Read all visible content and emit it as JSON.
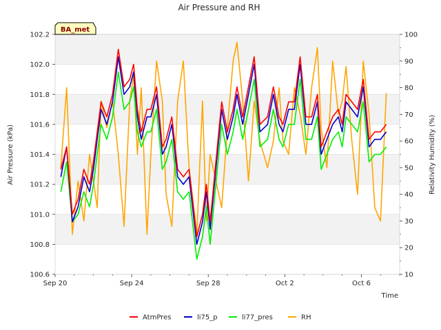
{
  "chart_data": {
    "type": "line",
    "title": "Air Pressure and RH",
    "badge": "BA_met",
    "xlabel": "Time",
    "ylabel_left": "Air Pressure (kPa)",
    "ylabel_right": "Relativity Humidity (%)",
    "x_range_days": [
      0,
      18
    ],
    "ylim_left": [
      100.6,
      102.2
    ],
    "ylim_right": [
      10,
      100
    ],
    "x_ticks": [
      {
        "day": 0,
        "label": "Sep 20"
      },
      {
        "day": 4,
        "label": "Sep 24"
      },
      {
        "day": 8,
        "label": "Sep 28"
      },
      {
        "day": 12,
        "label": "Oct 2"
      },
      {
        "day": 16,
        "label": "Oct 6"
      }
    ],
    "y_ticks_left": [
      "100.6",
      "100.8",
      "101.0",
      "101.2",
      "101.4",
      "101.6",
      "101.8",
      "102.0",
      "102.2"
    ],
    "y_ticks_right": [
      "10",
      "20",
      "30",
      "40",
      "50",
      "60",
      "70",
      "80",
      "90",
      "100"
    ],
    "grid": true,
    "legend_position": "bottom",
    "x_days": [
      0.3,
      0.6,
      0.9,
      1.2,
      1.5,
      1.8,
      2.0,
      2.2,
      2.4,
      2.7,
      3.0,
      3.3,
      3.6,
      3.9,
      4.1,
      4.3,
      4.5,
      4.8,
      5.0,
      5.3,
      5.6,
      5.8,
      6.1,
      6.4,
      6.7,
      7.0,
      7.4,
      7.7,
      7.9,
      8.1,
      8.4,
      8.7,
      9.0,
      9.3,
      9.5,
      9.8,
      10.1,
      10.4,
      10.7,
      11.1,
      11.4,
      11.7,
      11.9,
      12.2,
      12.5,
      12.8,
      13.1,
      13.4,
      13.7,
      13.9,
      14.2,
      14.5,
      14.8,
      15.0,
      15.2,
      15.5,
      15.8,
      16.1,
      16.4,
      16.7,
      17.0,
      17.3
    ],
    "series": [
      {
        "name": "AtmPres",
        "color": "#ff0000",
        "axis": "left",
        "values": [
          101.3,
          101.45,
          101.0,
          101.1,
          101.3,
          101.2,
          101.35,
          101.55,
          101.75,
          101.65,
          101.8,
          102.1,
          101.85,
          101.9,
          102.0,
          101.7,
          101.55,
          101.7,
          101.7,
          101.85,
          101.45,
          101.5,
          101.65,
          101.3,
          101.25,
          101.3,
          100.85,
          101.0,
          101.2,
          100.95,
          101.35,
          101.75,
          101.55,
          101.7,
          101.85,
          101.65,
          101.85,
          102.05,
          101.6,
          101.65,
          101.85,
          101.65,
          101.6,
          101.75,
          101.75,
          102.05,
          101.65,
          101.65,
          101.8,
          101.45,
          101.55,
          101.65,
          101.7,
          101.6,
          101.8,
          101.75,
          101.7,
          101.9,
          101.5,
          101.55,
          101.55,
          101.6
        ]
      },
      {
        "name": "li75_p",
        "color": "#0000cc",
        "axis": "left",
        "values": [
          101.25,
          101.45,
          100.95,
          101.05,
          101.25,
          101.15,
          101.3,
          101.5,
          101.7,
          101.6,
          101.75,
          102.05,
          101.8,
          101.85,
          101.95,
          101.65,
          101.5,
          101.65,
          101.65,
          101.8,
          101.4,
          101.45,
          101.6,
          101.25,
          101.2,
          101.25,
          100.8,
          100.95,
          101.15,
          100.9,
          101.3,
          101.7,
          101.5,
          101.65,
          101.8,
          101.6,
          101.8,
          102.0,
          101.55,
          101.6,
          101.8,
          101.6,
          101.55,
          101.7,
          101.7,
          102.0,
          101.6,
          101.6,
          101.75,
          101.4,
          101.5,
          101.6,
          101.65,
          101.55,
          101.75,
          101.7,
          101.65,
          101.85,
          101.45,
          101.5,
          101.5,
          101.55
        ]
      },
      {
        "name": "li77_pres",
        "color": "#00ee00",
        "axis": "left",
        "values": [
          101.15,
          101.35,
          100.95,
          101.0,
          101.15,
          101.05,
          101.2,
          101.4,
          101.6,
          101.5,
          101.65,
          101.95,
          101.7,
          101.75,
          101.85,
          101.55,
          101.45,
          101.55,
          101.55,
          101.7,
          101.3,
          101.35,
          101.5,
          101.15,
          101.1,
          101.15,
          100.7,
          100.85,
          101.05,
          100.8,
          101.2,
          101.6,
          101.4,
          101.55,
          101.7,
          101.5,
          101.7,
          101.9,
          101.45,
          101.5,
          101.7,
          101.5,
          101.45,
          101.6,
          101.6,
          101.9,
          101.5,
          101.5,
          101.65,
          101.3,
          101.4,
          101.5,
          101.55,
          101.45,
          101.65,
          101.6,
          101.55,
          101.75,
          101.35,
          101.4,
          101.4,
          101.45
        ]
      },
      {
        "name": "RH",
        "color": "#ffa500",
        "axis": "right",
        "values": [
          50,
          80,
          25,
          45,
          30,
          55,
          45,
          35,
          75,
          65,
          75,
          55,
          28,
          75,
          85,
          55,
          80,
          25,
          55,
          90,
          75,
          40,
          28,
          75,
          90,
          50,
          25,
          75,
          30,
          55,
          45,
          35,
          65,
          90,
          97,
          75,
          45,
          75,
          60,
          50,
          60,
          80,
          60,
          55,
          80,
          70,
          55,
          80,
          95,
          65,
          50,
          90,
          70,
          75,
          88,
          60,
          40,
          90,
          70,
          35,
          30,
          78
        ]
      }
    ]
  }
}
